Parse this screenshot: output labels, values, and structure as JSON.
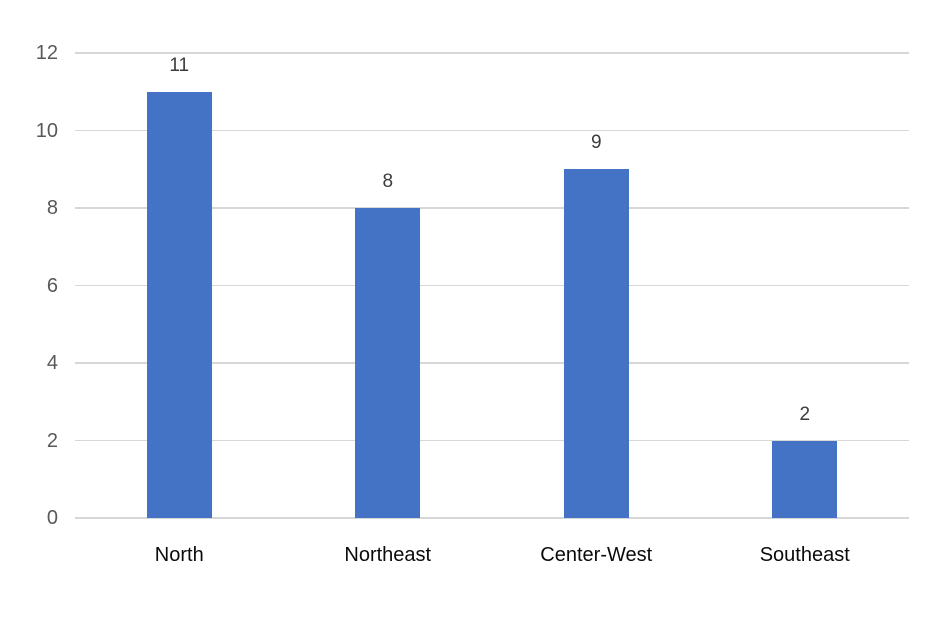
{
  "chart_data": {
    "type": "bar",
    "title": "",
    "xlabel": "",
    "ylabel": "",
    "categories": [
      "North",
      "Northeast",
      "Center-West",
      "Southeast"
    ],
    "values": [
      11,
      8,
      9,
      2
    ],
    "data_labels": [
      "11",
      "8",
      "9",
      "2"
    ],
    "yticks": [
      0,
      2,
      4,
      6,
      8,
      10,
      12
    ],
    "ylim": [
      0,
      12
    ],
    "grid": "horizontal",
    "legend": "none",
    "colors": {
      "bar": "#4472c4",
      "gridline": "#d7d7d7",
      "y_tick_label": "#595959",
      "x_tick_label": "#0b0b0b",
      "data_label": "#3d3d3d",
      "background": "#ffffff"
    }
  }
}
